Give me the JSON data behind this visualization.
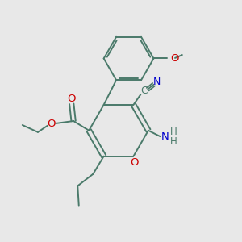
{
  "bg_color": "#e8e8e8",
  "bond_color": "#4a7a6a",
  "o_color": "#cc0000",
  "n_color": "#0000cc",
  "text_color": "#4a7a6a",
  "lw": 1.4,
  "figsize": [
    3.0,
    3.0
  ],
  "dpi": 100,
  "xlim": [
    0,
    10
  ],
  "ylim": [
    0,
    10
  ]
}
